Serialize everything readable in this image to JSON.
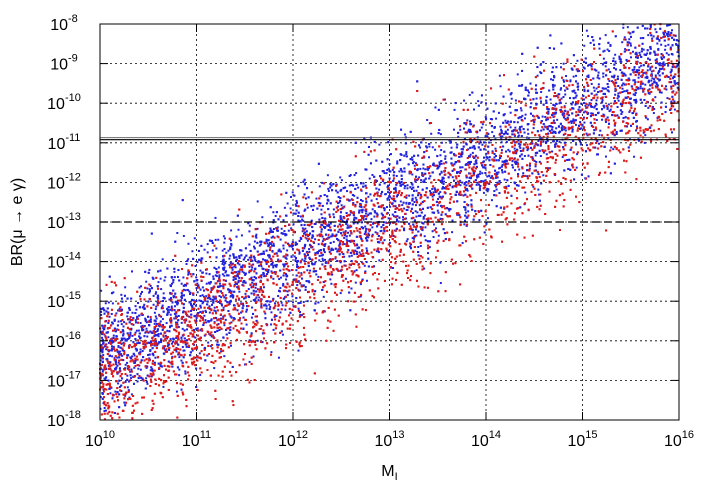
{
  "chart_data": {
    "type": "scatter",
    "title": "",
    "xlabel": "M",
    "xlabel_sub": "I",
    "ylabel": "BR(μ → e γ)",
    "x_scale": "log",
    "y_scale": "log",
    "xlim": [
      10000000000.0,
      1e+16
    ],
    "ylim": [
      1e-18,
      1e-08
    ],
    "x_ticks": [
      {
        "base": "10",
        "exp": "10"
      },
      {
        "base": "10",
        "exp": "11"
      },
      {
        "base": "10",
        "exp": "12"
      },
      {
        "base": "10",
        "exp": "13"
      },
      {
        "base": "10",
        "exp": "14"
      },
      {
        "base": "10",
        "exp": "15"
      },
      {
        "base": "10",
        "exp": "16"
      }
    ],
    "y_ticks": [
      {
        "base": "10",
        "exp": "-8"
      },
      {
        "base": "10",
        "exp": "-9"
      },
      {
        "base": "10",
        "exp": "-10"
      },
      {
        "base": "10",
        "exp": "-11"
      },
      {
        "base": "10",
        "exp": "-12"
      },
      {
        "base": "10",
        "exp": "-13"
      },
      {
        "base": "10",
        "exp": "-14"
      },
      {
        "base": "10",
        "exp": "-15"
      },
      {
        "base": "10",
        "exp": "-16"
      },
      {
        "base": "10",
        "exp": "-17"
      },
      {
        "base": "10",
        "exp": "-18"
      }
    ],
    "grid": true,
    "reference_lines": [
      {
        "y": 1.2e-11,
        "style": "solid"
      },
      {
        "y": 1e-13,
        "style": "dashed"
      }
    ],
    "series": [
      {
        "color": "#2222dd",
        "trend": {
          "log_x": [
            10,
            16
          ],
          "log_y": [
            -16.2,
            -8.6
          ]
        },
        "spread": 0.75,
        "count": 5200
      },
      {
        "color": "#dd1a1a",
        "trend": {
          "log_x": [
            10,
            16
          ],
          "log_y": [
            -16.8,
            -9.2
          ]
        },
        "spread": 0.85,
        "count": 4200
      }
    ]
  }
}
